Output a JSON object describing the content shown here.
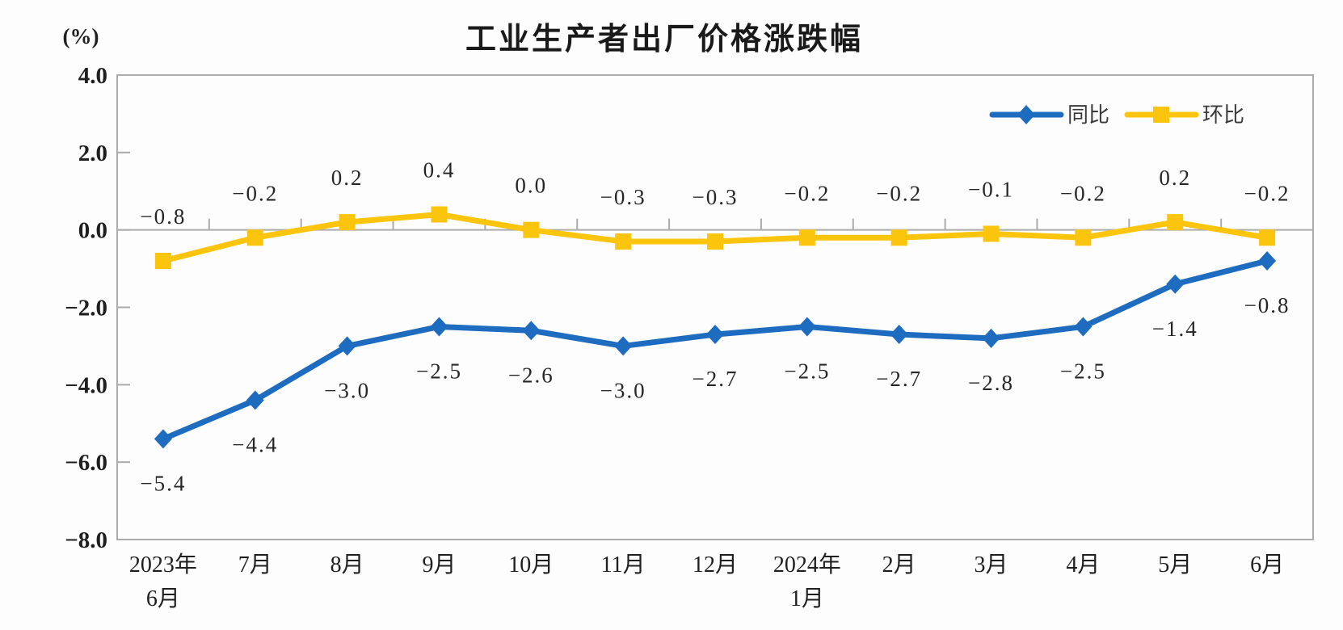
{
  "chart_data": {
    "type": "line",
    "title": "工业生产者出厂价格涨跌幅",
    "unit_label": "(%)",
    "categories": [
      [
        "2023年",
        "6月"
      ],
      [
        "7月"
      ],
      [
        "8月"
      ],
      [
        "9月"
      ],
      [
        "10月"
      ],
      [
        "11月"
      ],
      [
        "12月"
      ],
      [
        "2024年",
        "1月"
      ],
      [
        "2月"
      ],
      [
        "3月"
      ],
      [
        "4月"
      ],
      [
        "5月"
      ],
      [
        "6月"
      ]
    ],
    "series": [
      {
        "name": "同比",
        "marker": "diamond",
        "color": "#1E6CC0",
        "label_side": "below",
        "values": [
          -5.4,
          -4.4,
          -3.0,
          -2.5,
          -2.6,
          -3.0,
          -2.7,
          -2.5,
          -2.7,
          -2.8,
          -2.5,
          -1.4,
          -0.8
        ]
      },
      {
        "name": "环比",
        "marker": "square",
        "color": "#FBC50D",
        "label_side": "above",
        "values": [
          -0.8,
          -0.2,
          0.2,
          0.4,
          0.0,
          -0.3,
          -0.3,
          -0.2,
          -0.2,
          -0.1,
          -0.2,
          0.2,
          -0.2
        ]
      }
    ],
    "ylim": [
      -8.0,
      4.0
    ],
    "ytick_step": 2.0,
    "yticks": [
      4.0,
      2.0,
      0.0,
      -2.0,
      -4.0,
      -6.0,
      -8.0
    ],
    "ytick_labels": [
      "4.0",
      "2.0",
      "0.0",
      "-2.0",
      "-4.0",
      "-6.0",
      "-8.0"
    ],
    "grid": false,
    "legend_position": "top-right",
    "axis_color": "#ABABAB",
    "text_color": "#1f1f1f"
  }
}
